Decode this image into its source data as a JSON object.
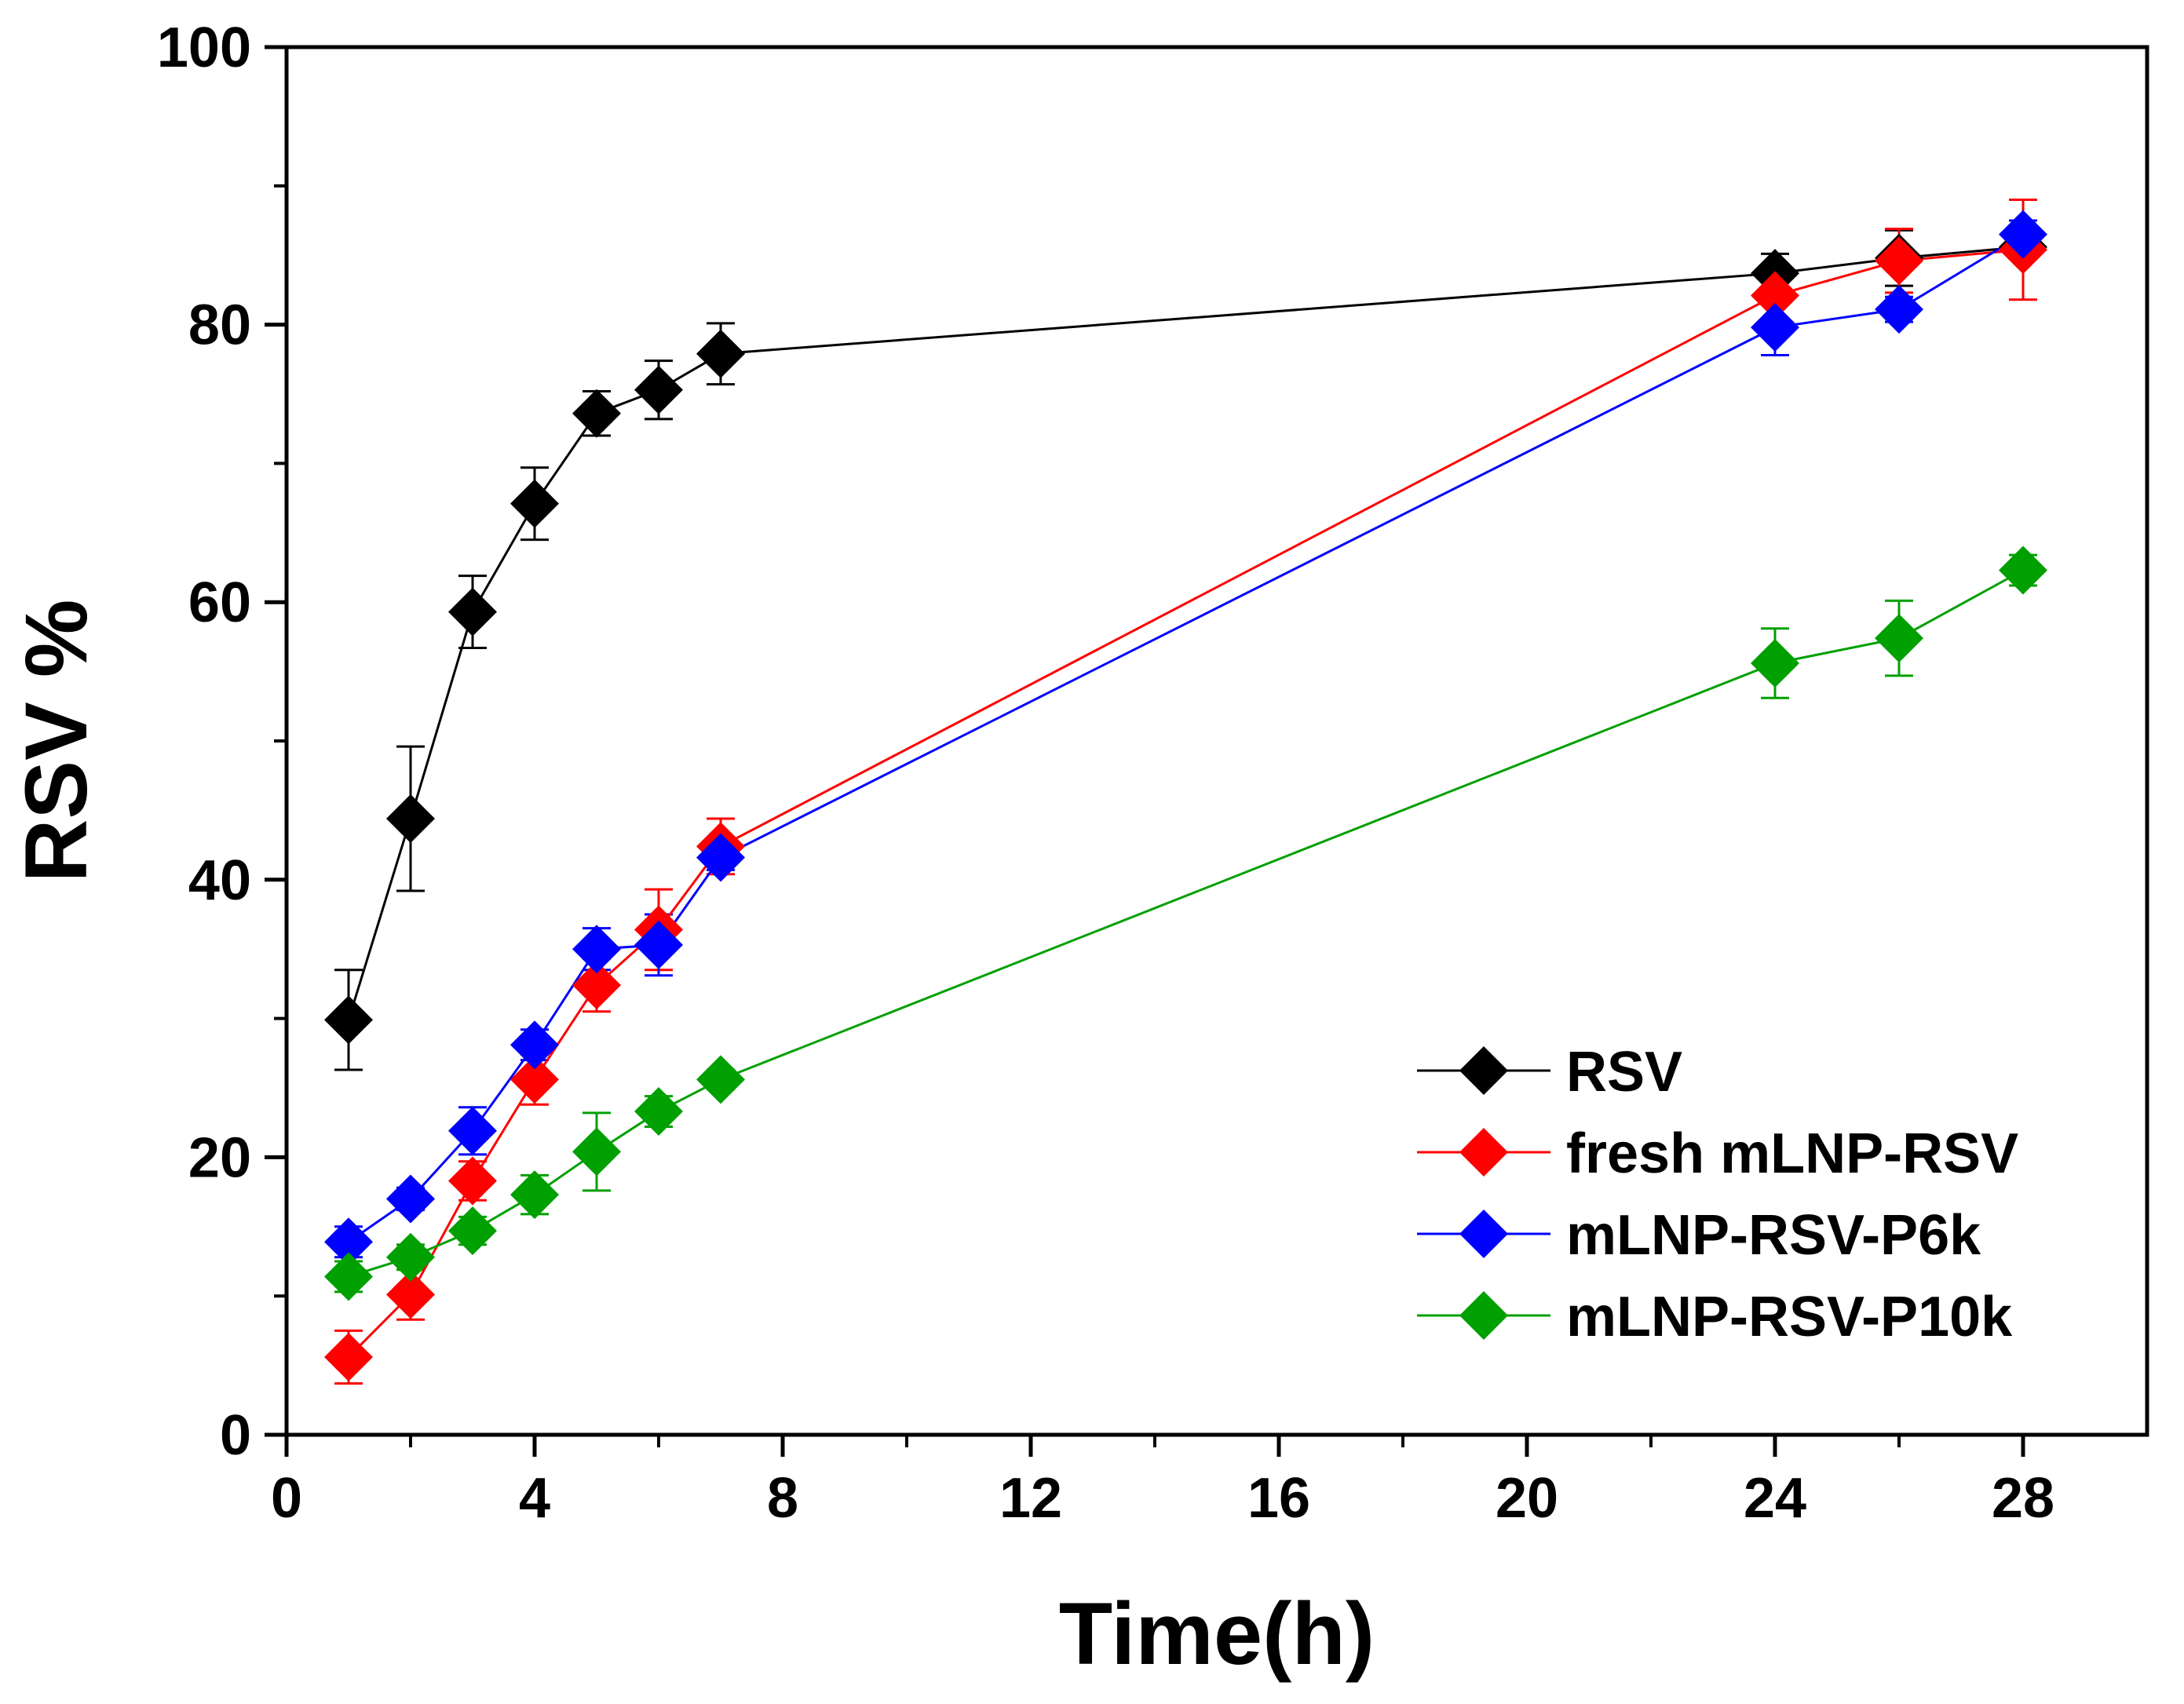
{
  "chart_data": {
    "type": "line",
    "title": "",
    "xlabel": "Time(h)",
    "ylabel": "RSV %",
    "xlim": [
      0,
      30
    ],
    "ylim": [
      0,
      100
    ],
    "xticks": [
      0,
      4,
      8,
      12,
      16,
      20,
      24,
      28
    ],
    "xtick_labels": [
      "0",
      "4",
      "8",
      "12",
      "16",
      "20",
      "24",
      "28"
    ],
    "yticks": [
      0,
      20,
      40,
      60,
      80,
      100
    ],
    "ytick_labels": [
      "0",
      "20",
      "40",
      "60",
      "80",
      "100"
    ],
    "grid": false,
    "legend_position": "bottom-right",
    "series": [
      {
        "name": "RSV",
        "color": "#000000",
        "x": [
          1,
          2,
          3,
          4,
          5,
          6,
          7,
          24,
          26,
          28
        ],
        "y": [
          29.9,
          44.4,
          59.3,
          67.1,
          73.6,
          75.3,
          77.9,
          83.7,
          84.8,
          85.6
        ],
        "err": [
          3.6,
          5.2,
          2.6,
          2.6,
          1.6,
          2.1,
          2.2,
          1.4,
          2.0,
          0.8
        ]
      },
      {
        "name": "fresh mLNP-RSV",
        "color": "#ff0000",
        "x": [
          1,
          2,
          3,
          4,
          5,
          6,
          7,
          24,
          26,
          28
        ],
        "y": [
          5.6,
          10.1,
          18.3,
          25.6,
          32.4,
          36.4,
          42.4,
          82.1,
          84.6,
          85.4
        ],
        "err": [
          1.9,
          1.8,
          1.4,
          1.8,
          1.9,
          2.9,
          2.0,
          1.9,
          2.3,
          3.6
        ]
      },
      {
        "name": "mLNP-RSV-P6k",
        "color": "#0000ff",
        "x": [
          1,
          2,
          3,
          4,
          5,
          6,
          7,
          24,
          26,
          28
        ],
        "y": [
          13.9,
          17.0,
          21.9,
          28.1,
          35.0,
          35.3,
          41.6,
          79.8,
          81.1,
          86.5
        ],
        "err": [
          1.1,
          0.8,
          1.7,
          1.1,
          1.5,
          2.2,
          0.9,
          2.0,
          0.9,
          1.0
        ]
      },
      {
        "name": "mLNP-RSV-P10k",
        "color": "#00a000",
        "x": [
          1,
          2,
          3,
          4,
          5,
          6,
          7,
          24,
          26,
          28
        ],
        "y": [
          11.4,
          12.8,
          14.7,
          17.3,
          20.4,
          23.3,
          25.6,
          55.6,
          57.4,
          62.3
        ],
        "err": [
          1.1,
          0.9,
          1.0,
          1.4,
          2.8,
          1.1,
          0.7,
          2.5,
          2.7,
          1.1
        ]
      }
    ]
  }
}
